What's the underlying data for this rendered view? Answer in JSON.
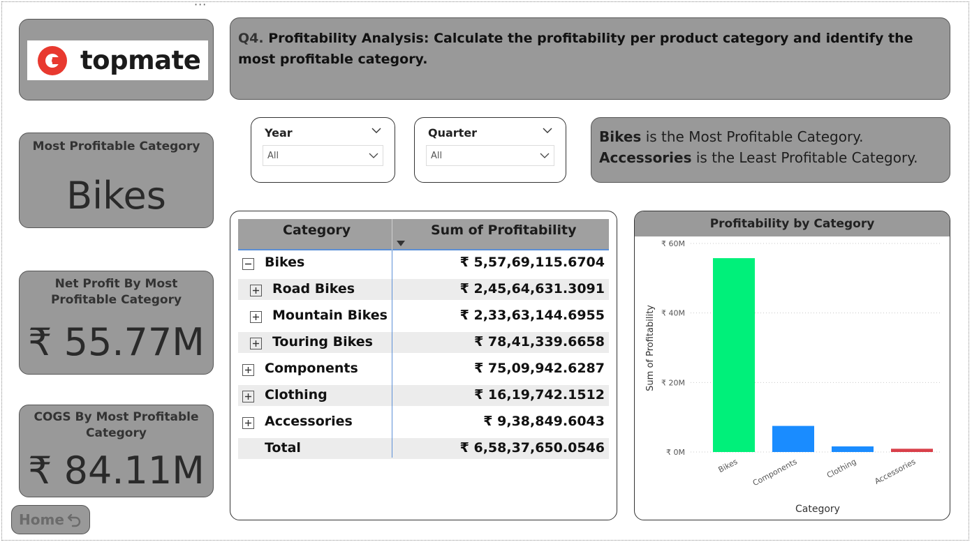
{
  "menu": {
    "more_label": "···"
  },
  "logo": {
    "text": "topmate",
    "mark_color": "#e8392f"
  },
  "kpis": {
    "most_profitable": {
      "title": "Most Profitable Category",
      "value": "Bikes"
    },
    "net_profit": {
      "title_line1": "Net Profit By Most",
      "title_line2": "Profitable Category",
      "value": "₹ 55.77M"
    },
    "cogs": {
      "title_line1": "COGS By Most Profitable",
      "title_line2": "Category",
      "value": "₹ 84.11M"
    }
  },
  "home": {
    "label": "Home"
  },
  "question": {
    "prefix": "Q4.",
    "text": "Profitability Analysis: Calculate the profitability per product category and identify the most profitable category."
  },
  "slicers": {
    "year": {
      "title": "Year",
      "value": "All"
    },
    "quarter": {
      "title": "Quarter",
      "value": "All"
    }
  },
  "insight": {
    "line1_bold": "Bikes",
    "line1_rest": " is the Most Profitable Category.",
    "line2_bold": "Accessories",
    "line2_rest": " is the Least Profitable Category."
  },
  "table": {
    "headers": {
      "category": "Category",
      "sum": "Sum of Profitability"
    },
    "rows": [
      {
        "category": "Bikes",
        "value": "₹ 5,57,69,115.6704",
        "level": 0,
        "expander": "minus"
      },
      {
        "category": "Road Bikes",
        "value": "₹ 2,45,64,631.3091",
        "level": 1,
        "expander": "plus"
      },
      {
        "category": "Mountain Bikes",
        "value": "₹ 2,33,63,144.6955",
        "level": 1,
        "expander": "plus"
      },
      {
        "category": "Touring Bikes",
        "value": "₹ 78,41,339.6658",
        "level": 1,
        "expander": "plus"
      },
      {
        "category": "Components",
        "value": "₹ 75,09,942.6287",
        "level": 0,
        "expander": "plus"
      },
      {
        "category": "Clothing",
        "value": "₹ 16,19,742.1512",
        "level": 0,
        "expander": "plus"
      },
      {
        "category": "Accessories",
        "value": "₹ 9,38,849.6043",
        "level": 0,
        "expander": "plus"
      },
      {
        "category": "Total",
        "value": "₹ 6,58,37,650.0546",
        "level": 0,
        "expander": "none"
      }
    ]
  },
  "chart_data": {
    "type": "bar",
    "title": "Profitability by Category",
    "xlabel": "Category",
    "ylabel": "Sum of Profitability",
    "categories": [
      "Bikes",
      "Components",
      "Clothing",
      "Accessories"
    ],
    "values": [
      55769115.67,
      7509942.63,
      1619742.15,
      938849.6
    ],
    "colors": [
      "#00f07a",
      "#1a8cff",
      "#1a8cff",
      "#d9404a"
    ],
    "ylim": [
      0,
      60000000
    ],
    "yticks": [
      0,
      20000000,
      40000000,
      60000000
    ],
    "ytick_labels": [
      "₹ 0M",
      "₹ 20M",
      "₹ 40M",
      "₹ 60M"
    ],
    "grid": true
  }
}
